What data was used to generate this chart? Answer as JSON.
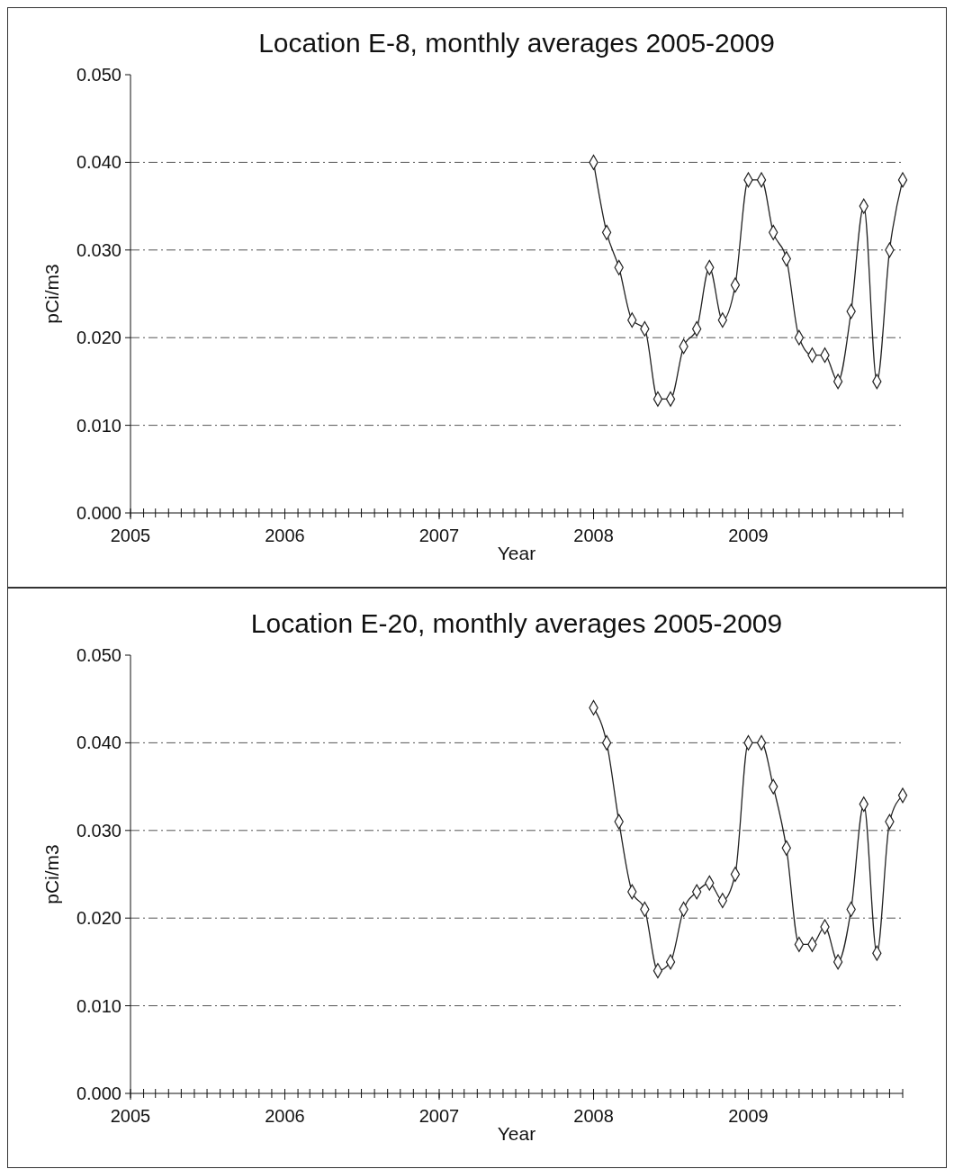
{
  "chart_data": [
    {
      "type": "line",
      "title": "Location E-8, monthly averages 2005-2009",
      "xlabel": "Year",
      "ylabel": "pCi/m3",
      "grid": "y",
      "marker": "diamond",
      "line_style": "solid",
      "x": [
        "2008-01",
        "2008-02",
        "2008-03",
        "2008-04",
        "2008-05",
        "2008-06",
        "2008-07",
        "2008-08",
        "2008-09",
        "2008-10",
        "2008-11",
        "2008-12",
        "2009-01",
        "2009-02",
        "2009-03",
        "2009-04",
        "2009-05",
        "2009-06",
        "2009-07",
        "2009-08",
        "2009-09",
        "2009-10",
        "2009-11",
        "2009-12",
        "2010-01"
      ],
      "series": [
        {
          "color": "#222222",
          "values": [
            0.04,
            0.032,
            0.028,
            0.022,
            0.021,
            0.013,
            0.013,
            0.019,
            0.021,
            0.028,
            0.022,
            0.026,
            0.038,
            0.038,
            0.032,
            0.029,
            0.02,
            0.018,
            0.018,
            0.015,
            0.023,
            0.035,
            0.015,
            0.03,
            0.038
          ]
        }
      ],
      "xlim": [
        "2005-01",
        "2010-01"
      ],
      "xticks": [
        {
          "value": "2005-01",
          "label": "2005"
        },
        {
          "value": "2006-01",
          "label": "2006"
        },
        {
          "value": "2007-01",
          "label": "2007"
        },
        {
          "value": "2008-01",
          "label": "2008"
        },
        {
          "value": "2009-01",
          "label": "2009"
        }
      ],
      "ylim": [
        0,
        0.05
      ],
      "yticks": [
        {
          "value": 0,
          "label": "0.000"
        },
        {
          "value": 0.01,
          "label": "0.010"
        },
        {
          "value": 0.02,
          "label": "0.020"
        },
        {
          "value": 0.03,
          "label": "0.030"
        },
        {
          "value": 0.04,
          "label": "0.040"
        },
        {
          "value": 0.05,
          "label": "0.050"
        }
      ]
    },
    {
      "type": "line",
      "title": "Location E-20, monthly averages 2005-2009",
      "xlabel": "Year",
      "ylabel": "pCi/m3",
      "grid": "y",
      "marker": "diamond",
      "line_style": "solid",
      "x": [
        "2008-01",
        "2008-02",
        "2008-03",
        "2008-04",
        "2008-05",
        "2008-06",
        "2008-07",
        "2008-08",
        "2008-09",
        "2008-10",
        "2008-11",
        "2008-12",
        "2009-01",
        "2009-02",
        "2009-03",
        "2009-04",
        "2009-05",
        "2009-06",
        "2009-07",
        "2009-08",
        "2009-09",
        "2009-10",
        "2009-11",
        "2009-12",
        "2010-01"
      ],
      "series": [
        {
          "color": "#222222",
          "values": [
            0.044,
            0.04,
            0.031,
            0.023,
            0.021,
            0.014,
            0.015,
            0.021,
            0.023,
            0.024,
            0.022,
            0.025,
            0.04,
            0.04,
            0.035,
            0.028,
            0.017,
            0.017,
            0.019,
            0.015,
            0.021,
            0.033,
            0.016,
            0.031,
            0.034
          ]
        }
      ],
      "xlim": [
        "2005-01",
        "2010-01"
      ],
      "xticks": [
        {
          "value": "2005-01",
          "label": "2005"
        },
        {
          "value": "2006-01",
          "label": "2006"
        },
        {
          "value": "2007-01",
          "label": "2007"
        },
        {
          "value": "2008-01",
          "label": "2008"
        },
        {
          "value": "2009-01",
          "label": "2009"
        }
      ],
      "ylim": [
        0,
        0.05
      ],
      "yticks": [
        {
          "value": 0,
          "label": "0.000"
        },
        {
          "value": 0.01,
          "label": "0.010"
        },
        {
          "value": 0.02,
          "label": "0.020"
        },
        {
          "value": 0.03,
          "label": "0.030"
        },
        {
          "value": 0.04,
          "label": "0.040"
        },
        {
          "value": 0.05,
          "label": "0.050"
        }
      ]
    }
  ]
}
